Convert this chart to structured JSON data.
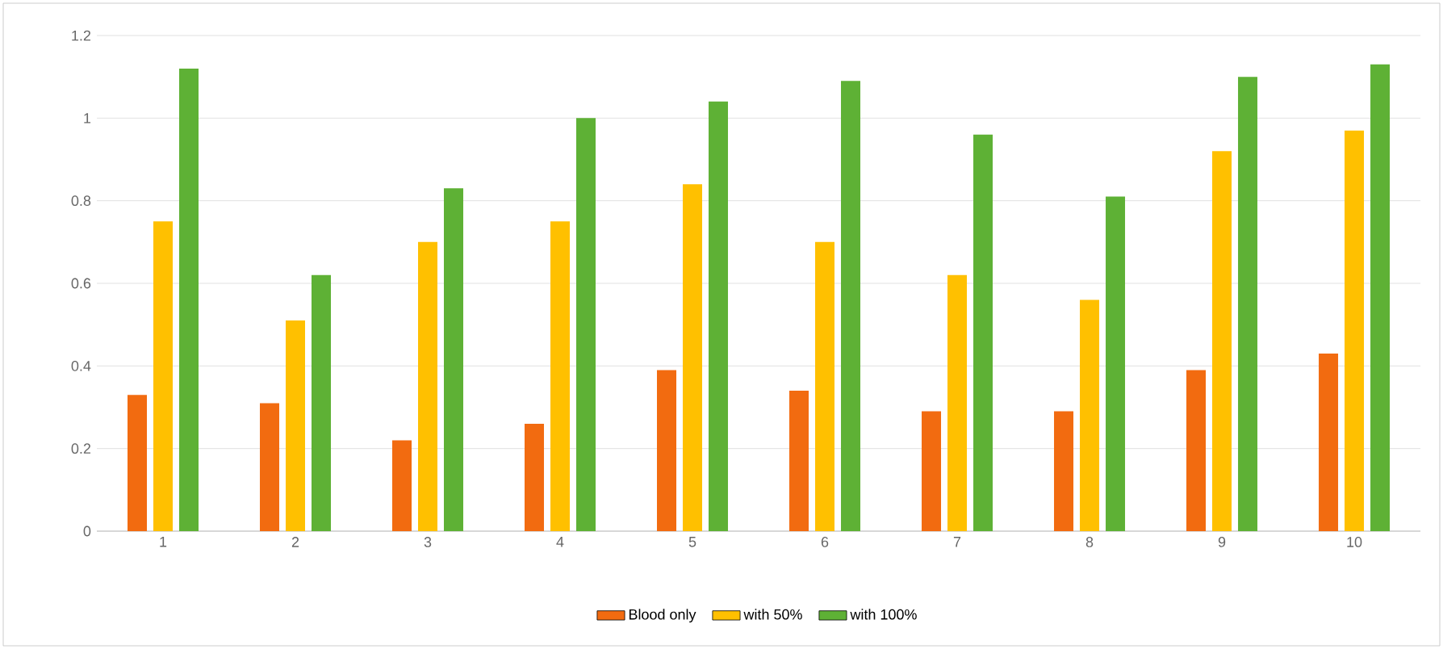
{
  "chart_data": {
    "type": "bar",
    "categories": [
      "1",
      "2",
      "3",
      "4",
      "5",
      "6",
      "7",
      "8",
      "9",
      "10"
    ],
    "series": [
      {
        "name": "Blood only",
        "color": "#f26b10",
        "values": [
          0.33,
          0.31,
          0.22,
          0.26,
          0.39,
          0.34,
          0.29,
          0.29,
          0.39,
          0.43
        ]
      },
      {
        "name": "with 50%",
        "color": "#ffc000",
        "values": [
          0.75,
          0.51,
          0.7,
          0.75,
          0.84,
          0.7,
          0.62,
          0.56,
          0.92,
          0.97
        ]
      },
      {
        "name": "with 100%",
        "color": "#5eb135",
        "values": [
          1.12,
          0.62,
          0.83,
          1.0,
          1.04,
          1.09,
          0.96,
          0.81,
          1.1,
          1.13
        ]
      }
    ],
    "ylim": [
      0,
      1.2
    ],
    "yticks": [
      0,
      0.2,
      0.4,
      0.6,
      0.8,
      1,
      1.2
    ],
    "grid": "y",
    "legend": "bottom"
  }
}
